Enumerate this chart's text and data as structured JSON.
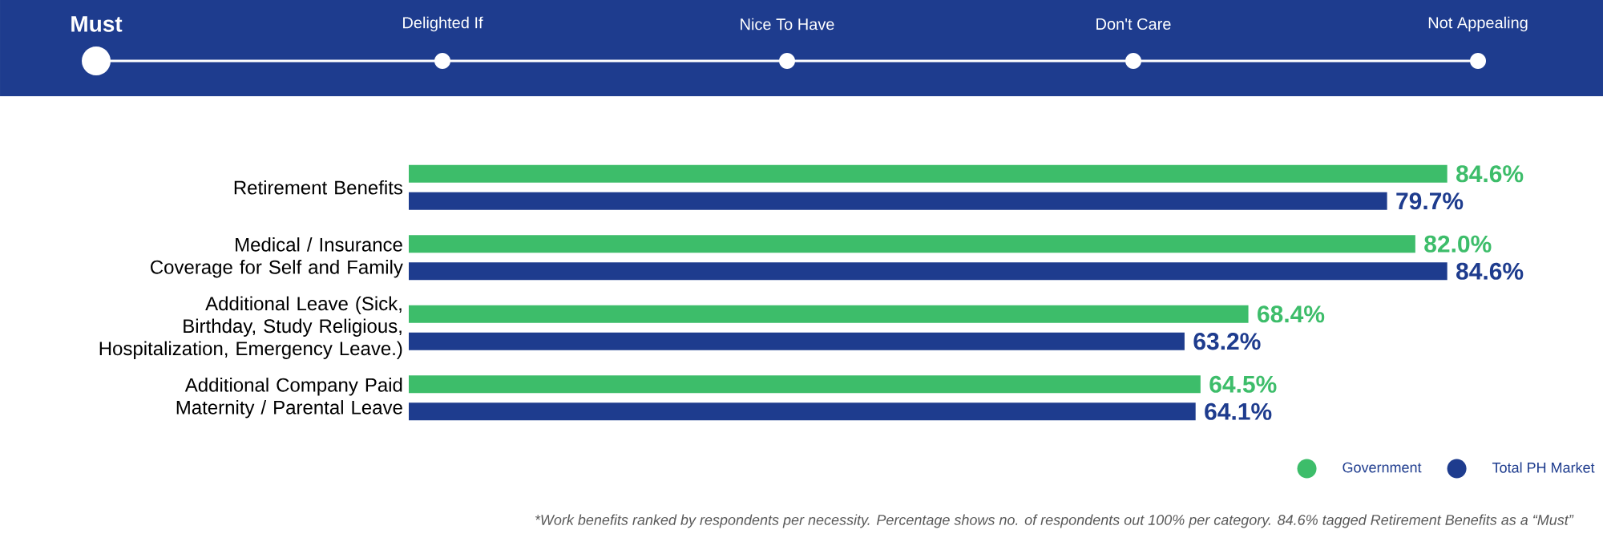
{
  "chart_data": {
    "type": "bar",
    "orientation": "horizontal",
    "categories": [
      "Retirement Benefits",
      "Medical / Insurance Coverage for Self and Family",
      "Additional Leave (Sick, Birthday, Study Religious, Hospitalization, Emergency Leave.)",
      "Additional Company Paid Maternity / Parental Leave"
    ],
    "series": [
      {
        "name": "Government",
        "color": "#3dbd6a",
        "values": [
          84.6,
          82.0,
          68.4,
          64.5
        ],
        "value_labels": [
          "84.6%",
          "82.0%",
          "68.4%",
          "64.5%"
        ]
      },
      {
        "name": "Total PH Market",
        "color": "#1e3c8e",
        "values": [
          79.7,
          84.6,
          63.2,
          64.1
        ],
        "value_labels": [
          "79.7%",
          "84.6%",
          "63.2%",
          "64.1%"
        ]
      }
    ],
    "legend": "bottom right",
    "annotations": [
      "Must",
      "Delighted If",
      "Nice To Have",
      "Don't Care",
      "Not Appealing",
      "*Work benefits ranked by respondents per necessity. Percentage shows no. of respondents out 100% per category. 84.6% tagged Retirement Benefits as a “Must”"
    ]
  }
}
